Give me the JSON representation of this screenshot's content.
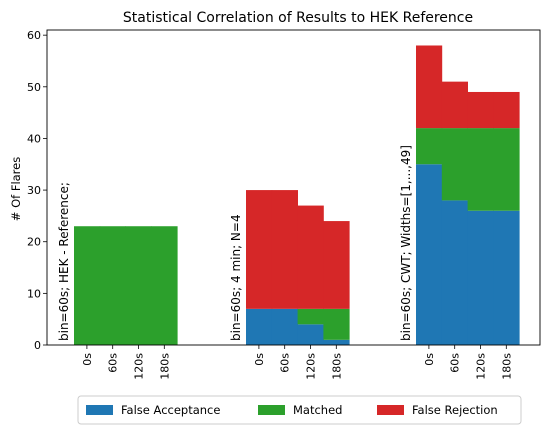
{
  "chart_data": {
    "type": "bar",
    "stacked": true,
    "title": "Statistical Correlation of Results to HEK Reference",
    "ylabel": "# Of Flares",
    "ylim": [
      0,
      61
    ],
    "yticks": [
      0,
      10,
      20,
      30,
      40,
      50,
      60
    ],
    "legend_position": "bottom",
    "colors": {
      "False Acceptance": "#1f77b4",
      "Matched": "#2ca02c",
      "False Rejection": "#d62728"
    },
    "groups": [
      {
        "label": "bin=60s; HEK - Reference;",
        "categories": [
          "0s",
          "60s",
          "120s",
          "180s"
        ],
        "series": [
          {
            "name": "False Acceptance",
            "values": [
              0,
              0,
              0,
              0
            ]
          },
          {
            "name": "Matched",
            "values": [
              23,
              23,
              23,
              23
            ]
          },
          {
            "name": "False Rejection",
            "values": [
              0,
              0,
              0,
              0
            ]
          }
        ]
      },
      {
        "label": "bin=60s; 4 min; N=4",
        "categories": [
          "0s",
          "60s",
          "120s",
          "180s"
        ],
        "series": [
          {
            "name": "False Acceptance",
            "values": [
              7,
              7,
              4,
              1
            ]
          },
          {
            "name": "Matched",
            "values": [
              0,
              0,
              3,
              6
            ]
          },
          {
            "name": "False Rejection",
            "values": [
              23,
              23,
              20,
              17
            ]
          }
        ]
      },
      {
        "label": "bin=60s; CWT; Widths=[1,...,49]",
        "categories": [
          "0s",
          "60s",
          "120s",
          "180s"
        ],
        "series": [
          {
            "name": "False Acceptance",
            "values": [
              35,
              28,
              26,
              26
            ]
          },
          {
            "name": "Matched",
            "values": [
              7,
              14,
              16,
              16
            ]
          },
          {
            "name": "False Rejection",
            "values": [
              16,
              9,
              7,
              7
            ]
          }
        ]
      }
    ]
  }
}
